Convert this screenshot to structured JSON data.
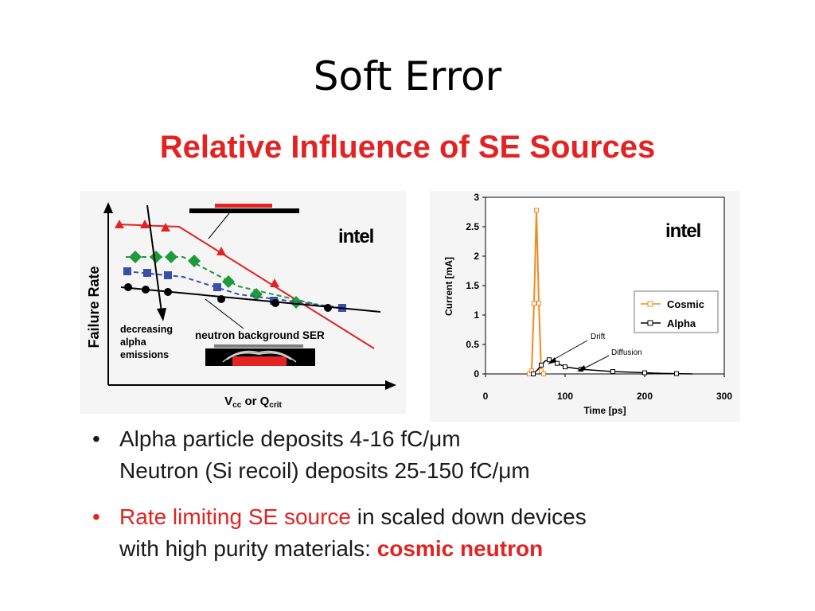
{
  "slide": {
    "title": "Soft Error",
    "subtitle": "Relative Influence of SE Sources"
  },
  "bullets": [
    {
      "marker": "•",
      "line1": "Alpha particle deposits 4-16 fC/μm",
      "line2": "Neutron (Si recoil) deposits 25-150 fC/μm"
    },
    {
      "marker": "•",
      "highlight": "Rate limiting SE source",
      "rest1": " in scaled down devices",
      "rest2_prefix": "with high purity materials: ",
      "emphasis": "cosmic neutron"
    }
  ],
  "chart_data": [
    {
      "type": "line",
      "title": "",
      "ylabel": "Failure Rate",
      "xlabel_main": "V",
      "xlabel_sub1": "cc",
      "xlabel_mid": " or Q",
      "xlabel_sub2": "crit",
      "logo": "intel",
      "annotations": {
        "arrow_label": "decreasing alpha emissions",
        "arrow_lines": [
          "decreasing",
          "alpha",
          "emissions"
        ],
        "neutron_label": "neutron background SER"
      },
      "colors": {
        "red": "#e32222",
        "green": "#1e9a3a",
        "blue": "#3b4fa8",
        "black": "#000000"
      },
      "series": [
        {
          "color": "red",
          "marker": "triangle",
          "style": "solid",
          "points": [
            [
              150,
              282
            ],
            [
              182,
              282
            ],
            [
              208,
              286
            ]
          ],
          "curve": [
            [
              148,
              282
            ],
            [
              225,
              285
            ],
            [
              470,
              438
            ]
          ],
          "extra_markers": [
            [
              278,
              316
            ],
            [
              345,
              356
            ]
          ]
        },
        {
          "color": "green",
          "marker": "diamond",
          "style": "dashed",
          "points": [
            [
              170,
              323
            ],
            [
              196,
              323
            ],
            [
              215,
              323
            ],
            [
              244,
              328
            ],
            [
              287,
              354
            ],
            [
              322,
              370
            ],
            [
              372,
              380
            ]
          ],
          "curve": [
            [
              158,
              323
            ],
            [
              230,
              323
            ],
            [
              300,
              360
            ],
            [
              400,
              383
            ]
          ]
        },
        {
          "color": "blue",
          "marker": "square",
          "style": "dashed",
          "points": [
            [
              160,
              341
            ],
            [
              185,
              343
            ],
            [
              211,
              346
            ],
            [
              273,
              361
            ],
            [
              344,
              378
            ],
            [
              430,
              387
            ]
          ],
          "curve": [
            [
              158,
              341
            ],
            [
              230,
              348
            ],
            [
              300,
              370
            ],
            [
              430,
              387
            ]
          ]
        },
        {
          "color": "black",
          "marker": "circle",
          "style": "solid",
          "points": [
            [
              161,
              361
            ],
            [
              183,
              364
            ],
            [
              211,
              367
            ],
            [
              278,
              376
            ],
            [
              346,
              381
            ],
            [
              412,
              387
            ]
          ],
          "curve": [
            [
              152,
              361
            ],
            [
              478,
              392
            ]
          ]
        }
      ]
    },
    {
      "type": "line",
      "title": "",
      "xlabel": "Time [ps]",
      "ylabel": "Current [mA]",
      "xlim": [
        0,
        300
      ],
      "ylim": [
        0,
        3
      ],
      "xticks": [
        "0",
        "100",
        "200",
        "300"
      ],
      "yticks": [
        "0",
        "0.5",
        "1",
        "1.5",
        "2",
        "2.5",
        "3"
      ],
      "logo": "intel",
      "legend_position": "center-right",
      "annotations": [
        "Drift",
        "Diffusion"
      ],
      "series": [
        {
          "name": "Cosmic",
          "color": "#f28a1e",
          "x": [
            55,
            58,
            61,
            64,
            67,
            70,
            73
          ],
          "y": [
            0.0,
            0.05,
            1.2,
            2.78,
            1.2,
            0.05,
            0.0
          ]
        },
        {
          "name": "Alpha",
          "color": "#000000",
          "x": [
            60,
            66,
            70,
            75,
            80,
            85,
            90,
            95,
            100,
            110,
            120,
            140,
            160,
            180,
            200,
            220,
            240,
            260
          ],
          "y": [
            0.0,
            0.08,
            0.15,
            0.22,
            0.24,
            0.22,
            0.18,
            0.15,
            0.12,
            0.1,
            0.08,
            0.06,
            0.04,
            0.03,
            0.02,
            0.01,
            0.005,
            0.0
          ]
        }
      ]
    }
  ]
}
